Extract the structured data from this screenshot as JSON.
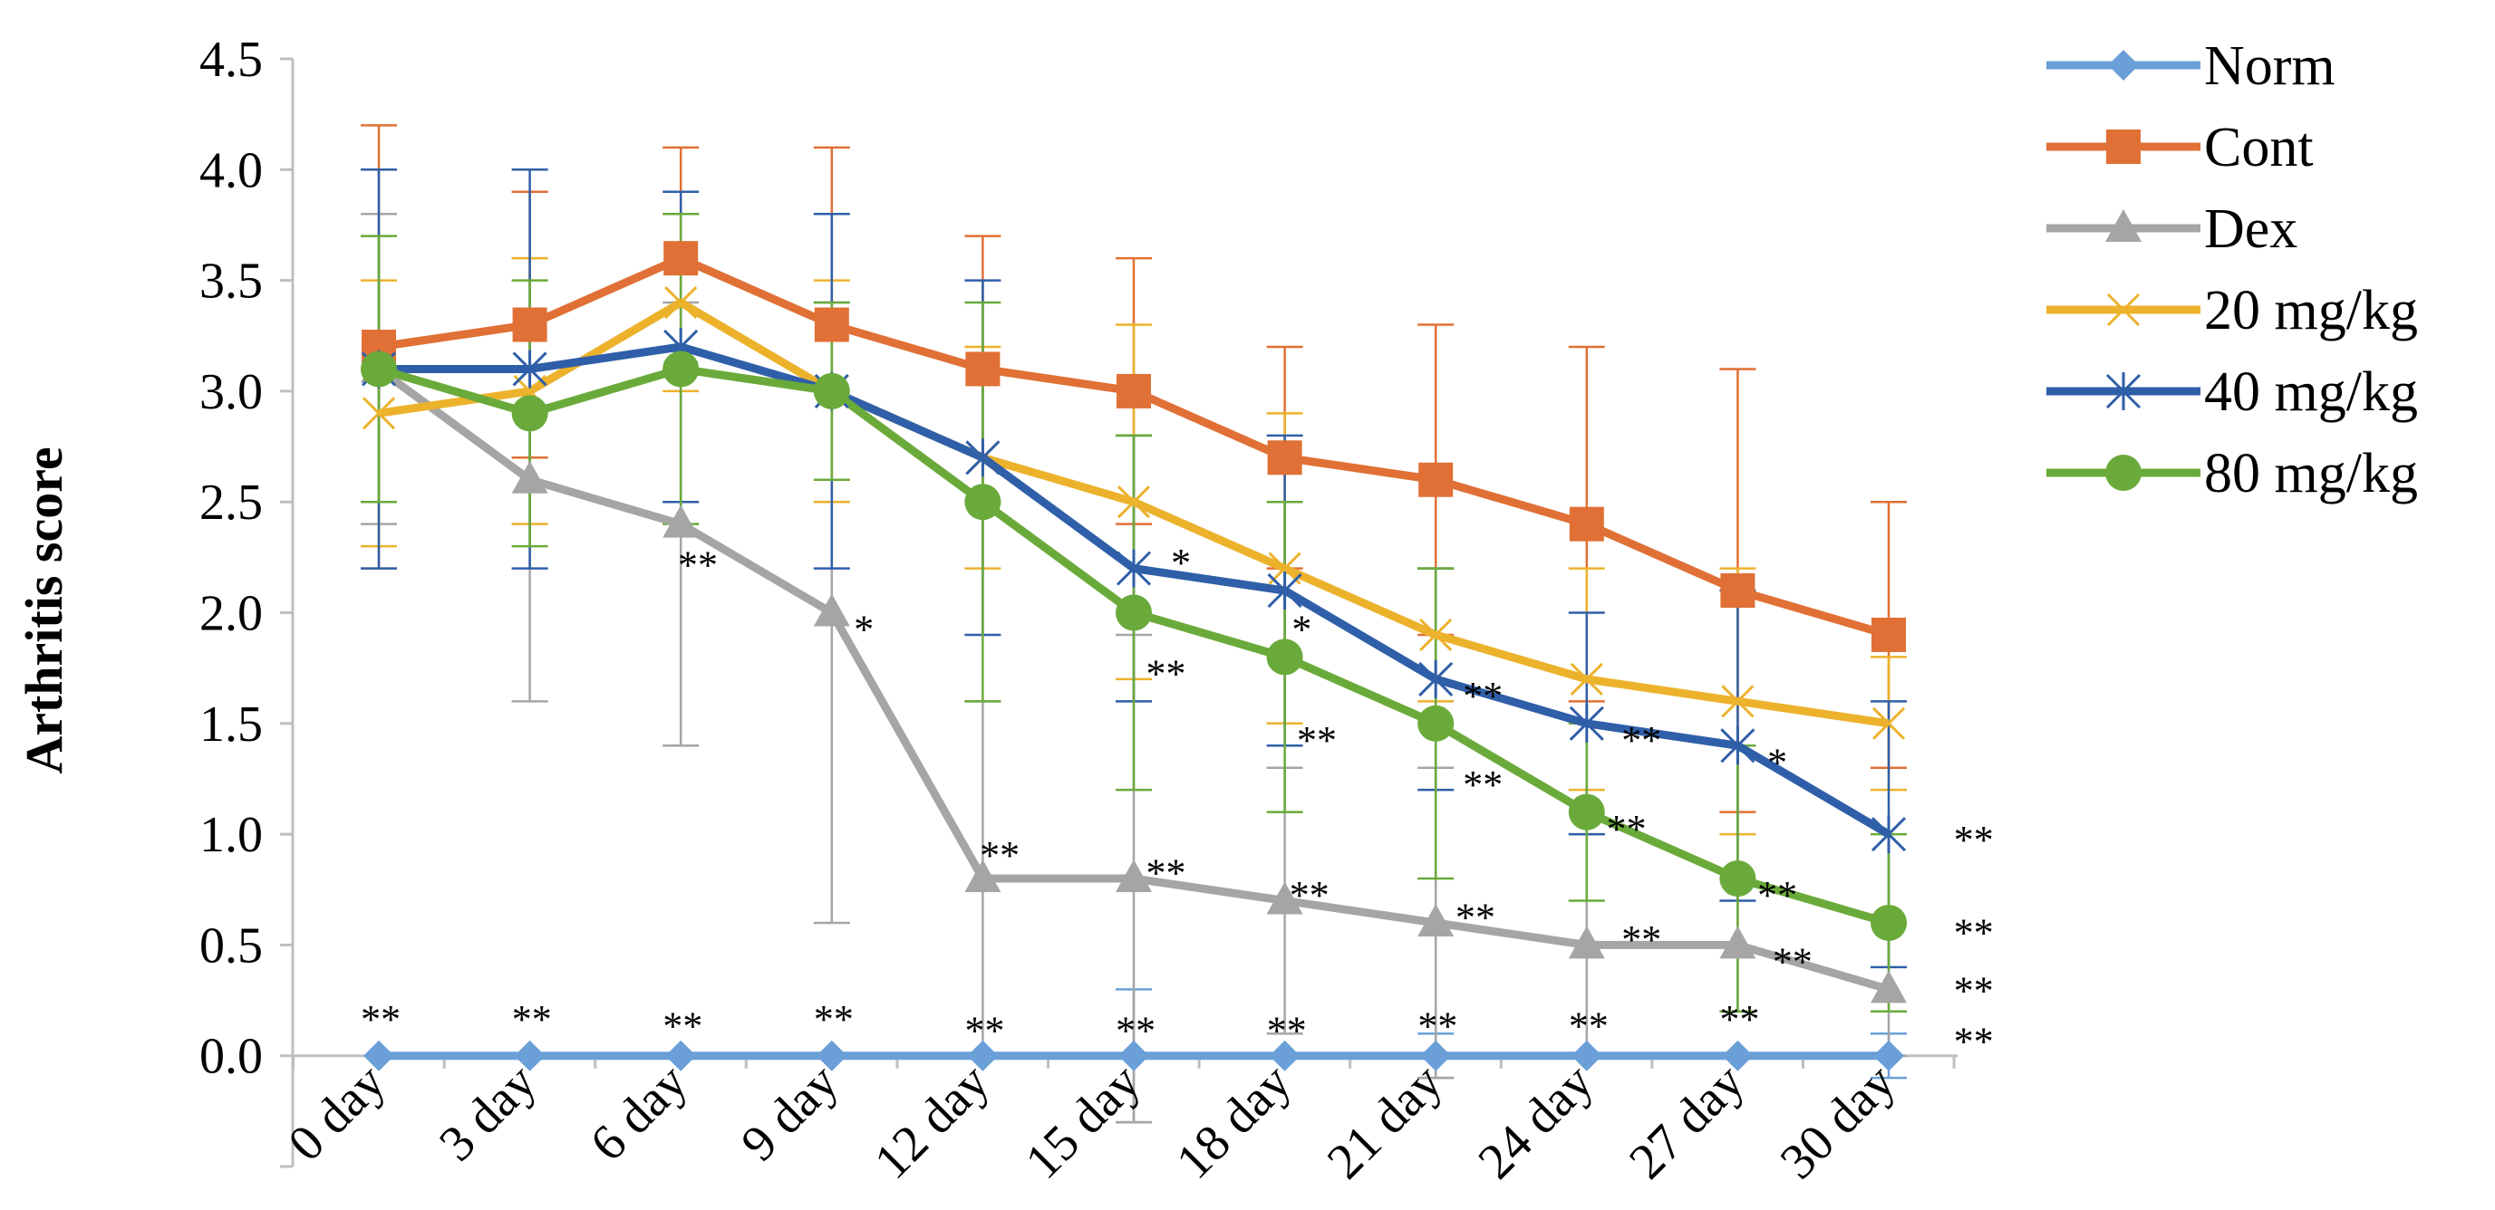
{
  "chart_data": {
    "type": "line",
    "title": "",
    "xlabel": "",
    "ylabel": "Arthritis score",
    "ylim": [
      -0.5,
      4.5
    ],
    "yticks": [
      "0.0",
      "0.5",
      "1.0",
      "1.5",
      "2.0",
      "2.5",
      "3.0",
      "3.5",
      "4.0",
      "4.5"
    ],
    "categories": [
      "0 day",
      "3 day",
      "6 day",
      "9 day",
      "12 day",
      "15 day",
      "18 day",
      "21 day",
      "24 day",
      "27 day",
      "30 day"
    ],
    "legend_position": "right",
    "series": [
      {
        "name": "Norm",
        "color": "#6a9fd8",
        "marker": "diamond",
        "values": [
          0,
          0,
          0,
          0,
          0,
          0,
          0,
          0,
          0,
          0,
          0
        ],
        "err": [
          0,
          0,
          0,
          0,
          0,
          0.3,
          0,
          0.1,
          0,
          0,
          0.1
        ]
      },
      {
        "name": "Cont",
        "color": "#e07035",
        "marker": "square",
        "values": [
          3.2,
          3.3,
          3.6,
          3.3,
          3.1,
          3.0,
          2.7,
          2.6,
          2.4,
          2.1,
          1.9
        ],
        "err": [
          1.0,
          0.6,
          0.5,
          0.8,
          0.6,
          0.6,
          0.5,
          0.7,
          0.8,
          1.0,
          0.6
        ]
      },
      {
        "name": "Dex",
        "color": "#a5a5a5",
        "marker": "triangle",
        "values": [
          3.1,
          2.6,
          2.4,
          2.0,
          0.8,
          0.8,
          0.7,
          0.6,
          0.5,
          0.5,
          0.3
        ],
        "err": [
          0.7,
          1.0,
          1.0,
          1.4,
          0.8,
          1.1,
          0.6,
          0.7,
          0.5,
          0.3,
          0.3
        ]
      },
      {
        "name": "20 mg/kg",
        "color": "#ecb22c",
        "marker": "x",
        "values": [
          2.9,
          3.0,
          3.4,
          3.0,
          2.7,
          2.5,
          2.2,
          1.9,
          1.7,
          1.6,
          1.5
        ],
        "err": [
          0.6,
          0.6,
          0.4,
          0.5,
          0.5,
          0.8,
          0.7,
          0.3,
          0.5,
          0.6,
          0.3
        ]
      },
      {
        "name": "40 mg/kg",
        "color": "#2f5fa8",
        "marker": "asterisk",
        "values": [
          3.1,
          3.1,
          3.2,
          3.0,
          2.7,
          2.2,
          2.1,
          1.7,
          1.5,
          1.4,
          1.0
        ],
        "err": [
          0.9,
          0.9,
          0.7,
          0.8,
          0.8,
          0.6,
          0.7,
          0.5,
          0.5,
          0.7,
          0.6
        ]
      },
      {
        "name": "80 mg/kg",
        "color": "#6aaa3a",
        "marker": "circle",
        "values": [
          3.1,
          2.9,
          3.1,
          3.0,
          2.5,
          2.0,
          1.8,
          1.5,
          1.1,
          0.8,
          0.6
        ],
        "err": [
          0.6,
          0.6,
          0.7,
          0.4,
          0.9,
          0.8,
          0.7,
          0.7,
          0.4,
          0.6,
          0.4
        ]
      }
    ],
    "annotations": [
      {
        "text": "**",
        "x": 0,
        "y": 0.17
      },
      {
        "text": "**",
        "x": 1,
        "y": 0.17
      },
      {
        "text": "**",
        "x": 2,
        "y": 0.14
      },
      {
        "text": "**",
        "x": 3,
        "y": 0.17
      },
      {
        "text": "**",
        "x": 4,
        "y": 0.12
      },
      {
        "text": "**",
        "x": 5,
        "y": 0.12
      },
      {
        "text": "**",
        "x": 6,
        "y": 0.12
      },
      {
        "text": "**",
        "x": 7,
        "y": 0.14
      },
      {
        "text": "**",
        "x": 8,
        "y": 0.14
      },
      {
        "text": "**",
        "x": 9,
        "y": 0.17
      },
      {
        "text": "**",
        "x": 10.55,
        "y": 0.07
      },
      {
        "text": "**",
        "x": 2.1,
        "y": 2.22
      },
      {
        "text": "*",
        "x": 3.2,
        "y": 1.93
      },
      {
        "text": "**",
        "x": 4.1,
        "y": 0.91
      },
      {
        "text": "**",
        "x": 5.2,
        "y": 0.83
      },
      {
        "text": "**",
        "x": 6.15,
        "y": 0.73
      },
      {
        "text": "**",
        "x": 7.25,
        "y": 0.63
      },
      {
        "text": "**",
        "x": 8.35,
        "y": 0.53
      },
      {
        "text": "**",
        "x": 9.35,
        "y": 0.43
      },
      {
        "text": "**",
        "x": 10.55,
        "y": 0.3
      },
      {
        "text": "*",
        "x": 5.3,
        "y": 2.23
      },
      {
        "text": "*",
        "x": 6.1,
        "y": 1.93
      },
      {
        "text": "**",
        "x": 7.3,
        "y": 1.63
      },
      {
        "text": "**",
        "x": 8.35,
        "y": 1.43
      },
      {
        "text": "*",
        "x": 9.25,
        "y": 1.33
      },
      {
        "text": "**",
        "x": 10.55,
        "y": 0.98
      },
      {
        "text": "**",
        "x": 5.2,
        "y": 1.73
      },
      {
        "text": "**",
        "x": 6.2,
        "y": 1.43
      },
      {
        "text": "**",
        "x": 7.3,
        "y": 1.23
      },
      {
        "text": "**",
        "x": 8.25,
        "y": 1.03
      },
      {
        "text": "**",
        "x": 9.25,
        "y": 0.73
      },
      {
        "text": "**",
        "x": 10.55,
        "y": 0.56
      }
    ]
  }
}
